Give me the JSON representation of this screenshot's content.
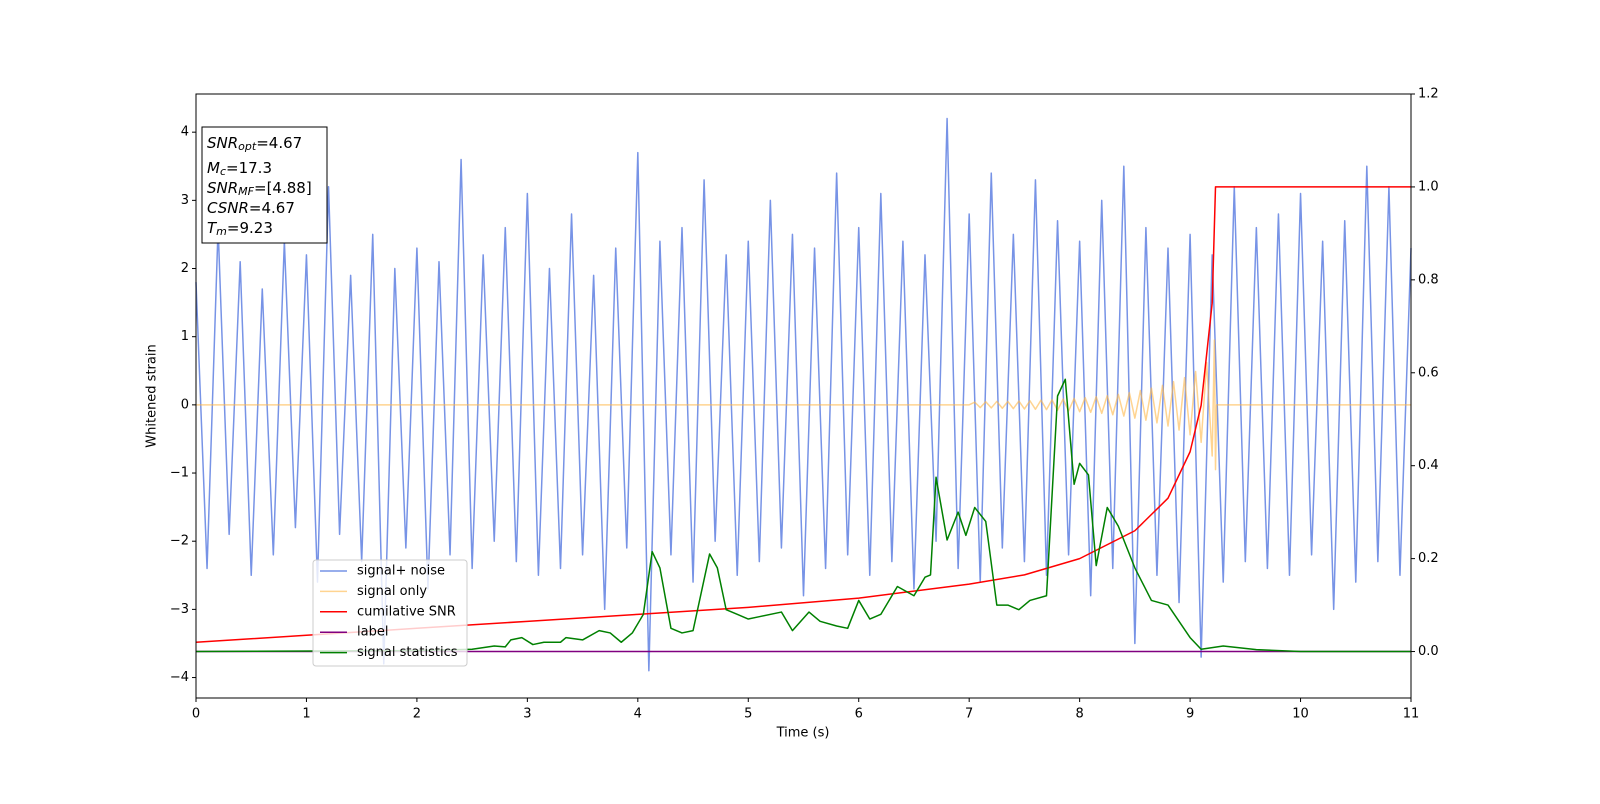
{
  "chart_data": {
    "type": "line",
    "xlabel": "Time (s)",
    "ylabel": "Whitened strain",
    "xlim": [
      0,
      11
    ],
    "ylim": [
      -4.3,
      4.56
    ],
    "y2lim": [
      -0.1,
      1.2
    ],
    "xticks": [
      0,
      1,
      2,
      3,
      4,
      5,
      6,
      7,
      8,
      9,
      10,
      11
    ],
    "yticks": [
      {
        "value": -4,
        "label": "−4"
      },
      {
        "value": -3,
        "label": "−3"
      },
      {
        "value": -2,
        "label": "−2"
      },
      {
        "value": -1,
        "label": "−1"
      },
      0,
      1,
      2,
      3,
      4
    ],
    "y2ticks": [
      {
        "value": 0,
        "label": "0.0"
      },
      0.2,
      0.4,
      0.6,
      0.8,
      {
        "value": 1,
        "label": "1.0"
      },
      1.2
    ],
    "legend": "lower left",
    "annotations": [
      {
        "symbol": "SNR",
        "subscript": "opt",
        "text": "=4.67"
      },
      {
        "symbol": "M",
        "subscript": "c",
        "text": "=17.3"
      },
      {
        "symbol": "SNR",
        "subscript": "MF",
        "text": "=[4.88]"
      },
      {
        "symbol": "CSNR",
        "text": "=4.67"
      },
      {
        "symbol": "T",
        "subscript": "m",
        "text": "=9.23"
      }
    ],
    "series": [
      {
        "name": "signal+ noise",
        "color": "#7793e6",
        "x": [
          0,
          0.1,
          0.2,
          0.3,
          0.4,
          0.5,
          0.6,
          0.7,
          0.8,
          0.9,
          1,
          1.1,
          1.2,
          1.3,
          1.4,
          1.5,
          1.6,
          1.7,
          1.8,
          1.9,
          2,
          2.1,
          2.2,
          2.3,
          2.4,
          2.5,
          2.6,
          2.7,
          2.8,
          2.9,
          3,
          3.1,
          3.2,
          3.3,
          3.4,
          3.5,
          3.6,
          3.7,
          3.8,
          3.9,
          4,
          4.1,
          4.2,
          4.3,
          4.4,
          4.5,
          4.6,
          4.7,
          4.8,
          4.9,
          5,
          5.1,
          5.2,
          5.3,
          5.4,
          5.5,
          5.6,
          5.7,
          5.8,
          5.9,
          6,
          6.1,
          6.2,
          6.3,
          6.4,
          6.5,
          6.6,
          6.7,
          6.8,
          6.9,
          7,
          7.1,
          7.2,
          7.3,
          7.4,
          7.5,
          7.6,
          7.7,
          7.8,
          7.9,
          8,
          8.1,
          8.2,
          8.3,
          8.4,
          8.5,
          8.6,
          8.7,
          8.8,
          8.9,
          9,
          9.1,
          9.2,
          9.3,
          9.4,
          9.5,
          9.6,
          9.7,
          9.8,
          9.9,
          10,
          10.1,
          10.2,
          10.3,
          10.4,
          10.5,
          10.6,
          10.7,
          10.8,
          10.9,
          11
        ],
        "values": [
          1.8,
          -2.4,
          2.6,
          -1.9,
          2.1,
          -2.5,
          1.7,
          -2.2,
          2.4,
          -1.8,
          2.2,
          -2.6,
          3.2,
          -1.9,
          1.9,
          -2.3,
          2.5,
          -3.8,
          2.0,
          -2.1,
          2.3,
          -2.7,
          2.1,
          -2.2,
          3.6,
          -2.4,
          2.2,
          -2.0,
          2.6,
          -2.3,
          3.1,
          -2.5,
          2.0,
          -2.4,
          2.8,
          -2.2,
          1.9,
          -3.0,
          2.3,
          -2.1,
          3.7,
          -3.9,
          2.4,
          -2.2,
          2.6,
          -2.6,
          3.3,
          -2.0,
          2.2,
          -2.5,
          2.4,
          -2.3,
          3.0,
          -2.1,
          2.5,
          -2.8,
          2.3,
          -2.4,
          3.4,
          -2.2,
          2.6,
          -2.5,
          3.1,
          -2.3,
          2.4,
          -2.7,
          2.2,
          -2.0,
          4.2,
          -2.4,
          2.8,
          -2.6,
          3.4,
          -2.1,
          2.5,
          -2.3,
          3.3,
          -2.5,
          2.7,
          -2.2,
          2.4,
          -2.8,
          3.0,
          -2.4,
          3.5,
          -3.5,
          2.6,
          -2.5,
          2.3,
          -2.9,
          2.5,
          -3.7,
          2.2,
          -2.6,
          3.2,
          -2.3,
          2.6,
          -2.4,
          2.8,
          -2.5,
          3.1,
          -2.2,
          2.4,
          -3.0,
          2.7,
          -2.6,
          3.5,
          -2.3,
          3.2,
          -2.5,
          2.3
        ]
      },
      {
        "name": "signal only",
        "color": "#ffb847",
        "x": [
          0,
          7,
          7.05,
          7.1,
          7.15,
          7.2,
          7.25,
          7.3,
          7.35,
          7.4,
          7.45,
          7.5,
          7.55,
          7.6,
          7.65,
          7.7,
          7.75,
          7.8,
          7.85,
          7.9,
          7.95,
          8,
          8.05,
          8.1,
          8.15,
          8.2,
          8.25,
          8.3,
          8.35,
          8.4,
          8.45,
          8.5,
          8.55,
          8.6,
          8.65,
          8.7,
          8.75,
          8.8,
          8.85,
          8.9,
          8.95,
          9,
          9.05,
          9.1,
          9.15,
          9.2,
          9.22,
          9.23,
          9.24,
          11
        ],
        "values": [
          0,
          0,
          0.04,
          -0.04,
          0.045,
          -0.045,
          0.05,
          -0.05,
          0.05,
          -0.055,
          0.055,
          -0.06,
          0.06,
          -0.065,
          0.07,
          -0.07,
          0.075,
          -0.08,
          0.085,
          -0.09,
          0.095,
          -0.1,
          0.105,
          -0.11,
          0.12,
          -0.125,
          0.135,
          -0.145,
          0.155,
          -0.165,
          0.18,
          -0.195,
          0.21,
          -0.225,
          0.245,
          -0.265,
          0.285,
          -0.31,
          0.34,
          -0.37,
          0.4,
          -0.44,
          0.49,
          -0.55,
          0.62,
          -0.75,
          0.95,
          -0.95,
          0,
          0
        ]
      },
      {
        "name": "cumilative SNR",
        "color": "#ff0000",
        "axis": "y2",
        "x": [
          0,
          1,
          2,
          3,
          4,
          5,
          6,
          7,
          7.5,
          8,
          8.5,
          8.8,
          9,
          9.1,
          9.2,
          9.23,
          9.3,
          11
        ],
        "values": [
          0.02,
          0.035,
          0.05,
          0.065,
          0.08,
          0.095,
          0.115,
          0.145,
          0.165,
          0.2,
          0.26,
          0.33,
          0.43,
          0.53,
          0.75,
          1,
          1,
          1
        ]
      },
      {
        "name": "label",
        "color": "#800080",
        "axis": "y2",
        "x": [
          0,
          11
        ],
        "values": [
          0,
          0
        ]
      },
      {
        "name": "signal statistics",
        "color": "#008000",
        "axis": "y2",
        "x": [
          0,
          2,
          2.5,
          2.7,
          2.8,
          2.85,
          2.95,
          3.05,
          3.15,
          3.3,
          3.35,
          3.5,
          3.65,
          3.75,
          3.85,
          3.95,
          4.05,
          4.13,
          4.2,
          4.3,
          4.4,
          4.5,
          4.65,
          4.72,
          4.8,
          4.9,
          5,
          5.1,
          5.3,
          5.4,
          5.55,
          5.65,
          5.8,
          5.9,
          6,
          6.1,
          6.2,
          6.35,
          6.5,
          6.6,
          6.65,
          6.7,
          6.8,
          6.9,
          6.97,
          7.05,
          7.15,
          7.25,
          7.35,
          7.45,
          7.55,
          7.7,
          7.8,
          7.87,
          7.95,
          8,
          8.08,
          8.15,
          8.25,
          8.35,
          8.5,
          8.65,
          8.8,
          9,
          9.1,
          9.3,
          9.6,
          10,
          11
        ],
        "values": [
          0,
          0.002,
          0.005,
          0.012,
          0.01,
          0.025,
          0.03,
          0.015,
          0.02,
          0.02,
          0.03,
          0.025,
          0.045,
          0.04,
          0.02,
          0.04,
          0.08,
          0.215,
          0.18,
          0.05,
          0.04,
          0.045,
          0.21,
          0.18,
          0.09,
          0.08,
          0.07,
          0.075,
          0.085,
          0.045,
          0.085,
          0.065,
          0.055,
          0.05,
          0.11,
          0.07,
          0.08,
          0.14,
          0.12,
          0.16,
          0.165,
          0.375,
          0.24,
          0.3,
          0.25,
          0.31,
          0.28,
          0.1,
          0.1,
          0.09,
          0.11,
          0.12,
          0.55,
          0.586,
          0.36,
          0.405,
          0.38,
          0.185,
          0.31,
          0.27,
          0.18,
          0.11,
          0.1,
          0.03,
          0.005,
          0.012,
          0.004,
          0,
          0
        ]
      }
    ]
  }
}
